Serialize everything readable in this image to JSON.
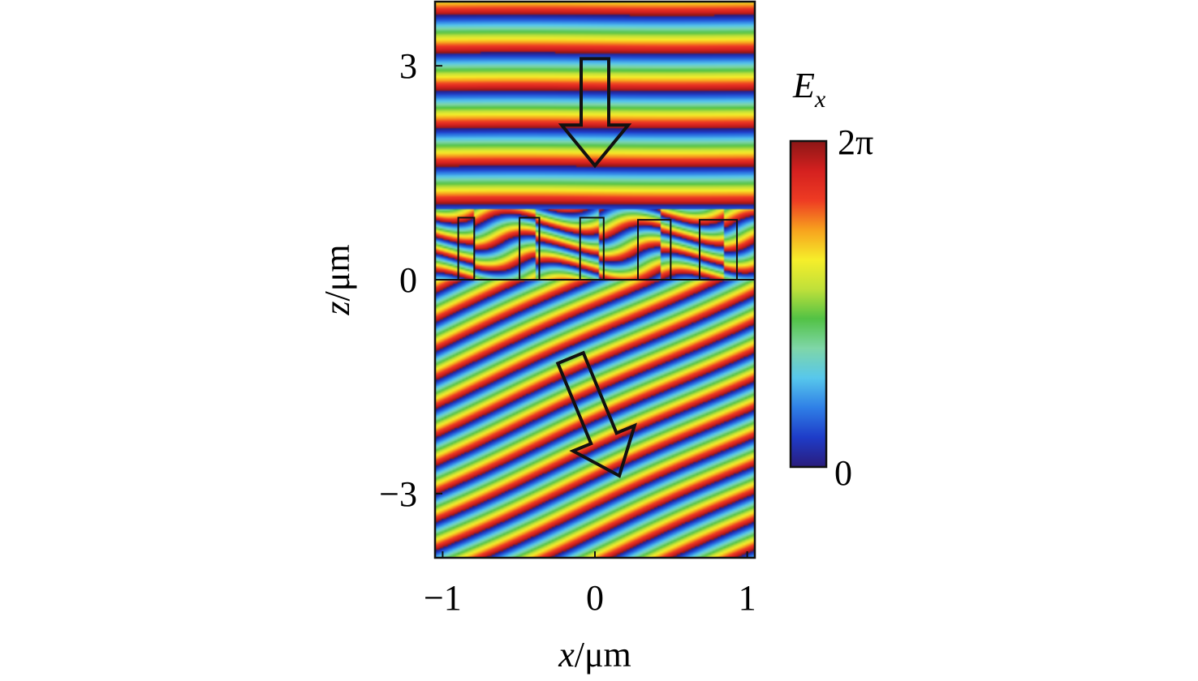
{
  "chart_data": {
    "type": "heatmap",
    "quantity": "Ex",
    "xlabel": {
      "var": "x",
      "unit": "/μm"
    },
    "ylabel": {
      "var": "z",
      "unit": "/μm"
    },
    "xlim": [
      -1.05,
      1.05
    ],
    "zlim": [
      -3.9,
      3.9
    ],
    "x_ticks": [
      {
        "value": -1,
        "label": "−1"
      },
      {
        "value": 0,
        "label": "0"
      },
      {
        "value": 1,
        "label": "1"
      }
    ],
    "z_ticks": [
      {
        "value": 3,
        "label": "3"
      },
      {
        "value": 0,
        "label": "0"
      },
      {
        "value": -3,
        "label": "−3"
      }
    ],
    "colorbar": {
      "label": {
        "main": "E",
        "sub": "x"
      },
      "max_label": "2π",
      "min_label": "0",
      "range": [
        0,
        6.2832
      ],
      "colormap": [
        "#2a1c7c",
        "#1e3cc8",
        "#2f7fe6",
        "#57c7ec",
        "#7fd6a8",
        "#52c245",
        "#bfe03a",
        "#f6ee2a",
        "#f7a21e",
        "#ee3b23",
        "#d4201f",
        "#8c1716"
      ]
    },
    "field": {
      "incident": {
        "wavelength_um": 0.53,
        "direction": "normal incidence, propagating toward -z"
      },
      "transmitted": {
        "wavelength_um": 0.4,
        "slope_dz_dx": 0.95,
        "direction": "deflected toward +x, propagating toward -z"
      },
      "metasurface_layer_z_um": [
        0,
        0.9
      ]
    },
    "pillars": [
      {
        "x_center": -0.845,
        "width": 0.105,
        "height": 0.87
      },
      {
        "x_center": -0.43,
        "width": 0.13,
        "height": 0.87
      },
      {
        "x_center": -0.02,
        "width": 0.155,
        "height": 0.87
      },
      {
        "x_center": 0.39,
        "width": 0.215,
        "height": 0.84
      },
      {
        "x_center": 0.81,
        "width": 0.245,
        "height": 0.84
      }
    ],
    "arrows": [
      {
        "name": "incident",
        "from": [
          0,
          3.1
        ],
        "to": [
          0,
          1.6
        ]
      },
      {
        "name": "transmitted",
        "from": [
          -0.16,
          -1.1
        ],
        "to": [
          0.16,
          -2.75
        ]
      }
    ]
  }
}
